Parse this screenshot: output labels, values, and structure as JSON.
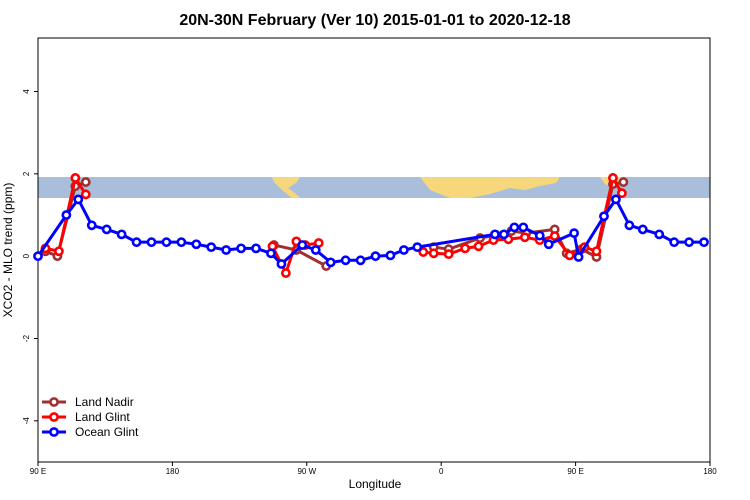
{
  "chart_data": {
    "type": "line",
    "title": "20N-30N February (Ver 10)   2015-01-01 to 2020-12-18",
    "x_label": "Longitude",
    "y_label": "XCO2 - MLO trend (ppm)",
    "xlim": [
      90,
      540
    ],
    "ylim": [
      -5,
      5.3
    ],
    "xticks": [
      {
        "value": 90,
        "label": "90 E"
      },
      180,
      {
        "value": 270,
        "label": "90 W"
      },
      {
        "value": 360,
        "label": "0"
      },
      {
        "value": 450,
        "label": "90 E"
      },
      {
        "value": 540,
        "label": "180"
      }
    ],
    "yticks": [
      -4,
      -2,
      0,
      2,
      4
    ],
    "legend": "bottom-left",
    "series": [
      {
        "name": "Land Nadir",
        "color": "#a03030",
        "x": [
          95,
          103,
          115,
          122,
          null,
          248,
          263,
          283,
          null,
          355,
          365,
          386,
          397,
          407,
          417,
          436,
          444,
          454,
          464,
          475,
          482
        ],
        "values": [
          0.12,
          0,
          1.7,
          1.8,
          null,
          0.27,
          0.15,
          -0.24,
          null,
          0.22,
          0.17,
          0.44,
          0.51,
          0.61,
          0.56,
          0.65,
          0.07,
          0.17,
          -0.02,
          1.75,
          1.8
        ]
      },
      {
        "name": "Land Glint",
        "color": "#ff0000",
        "x": [
          95,
          104,
          115,
          122,
          null,
          247,
          256,
          263,
          269,
          278,
          null,
          348,
          355,
          365,
          376,
          385,
          395,
          405,
          416,
          426,
          436,
          446,
          456,
          464,
          475,
          481
        ],
        "values": [
          0.19,
          0.12,
          1.9,
          1.5,
          null,
          0.24,
          -0.41,
          0.36,
          0.27,
          0.32,
          null,
          0.1,
          0.07,
          0.05,
          0.19,
          0.24,
          0.39,
          0.41,
          0.46,
          0.39,
          0.49,
          0.02,
          0.22,
          0.12,
          1.9,
          1.53
        ]
      },
      {
        "name": "Ocean Glint",
        "color": "#0000ff",
        "x": [
          90,
          109,
          117,
          126,
          136,
          146,
          156,
          166,
          176,
          186,
          196,
          206,
          216,
          226,
          236,
          246,
          253,
          267,
          276,
          286,
          296,
          306,
          316,
          326,
          335,
          344,
          396,
          402,
          409,
          415,
          426,
          432,
          449,
          452,
          469,
          477,
          486,
          495,
          506,
          516,
          526,
          536
        ],
        "values": [
          0,
          1.0,
          1.38,
          0.75,
          0.65,
          0.53,
          0.34,
          0.34,
          0.34,
          0.34,
          0.29,
          0.22,
          0.15,
          0.19,
          0.19,
          0.07,
          -0.19,
          0.27,
          0.15,
          -0.15,
          -0.1,
          -0.1,
          0,
          0.02,
          0.15,
          0.22,
          0.53,
          0.53,
          0.7,
          0.7,
          0.5,
          0.29,
          0.56,
          -0.02,
          0.97,
          1.38,
          0.75,
          0.65,
          0.53,
          0.34,
          0.34,
          0.34
        ]
      }
    ]
  }
}
